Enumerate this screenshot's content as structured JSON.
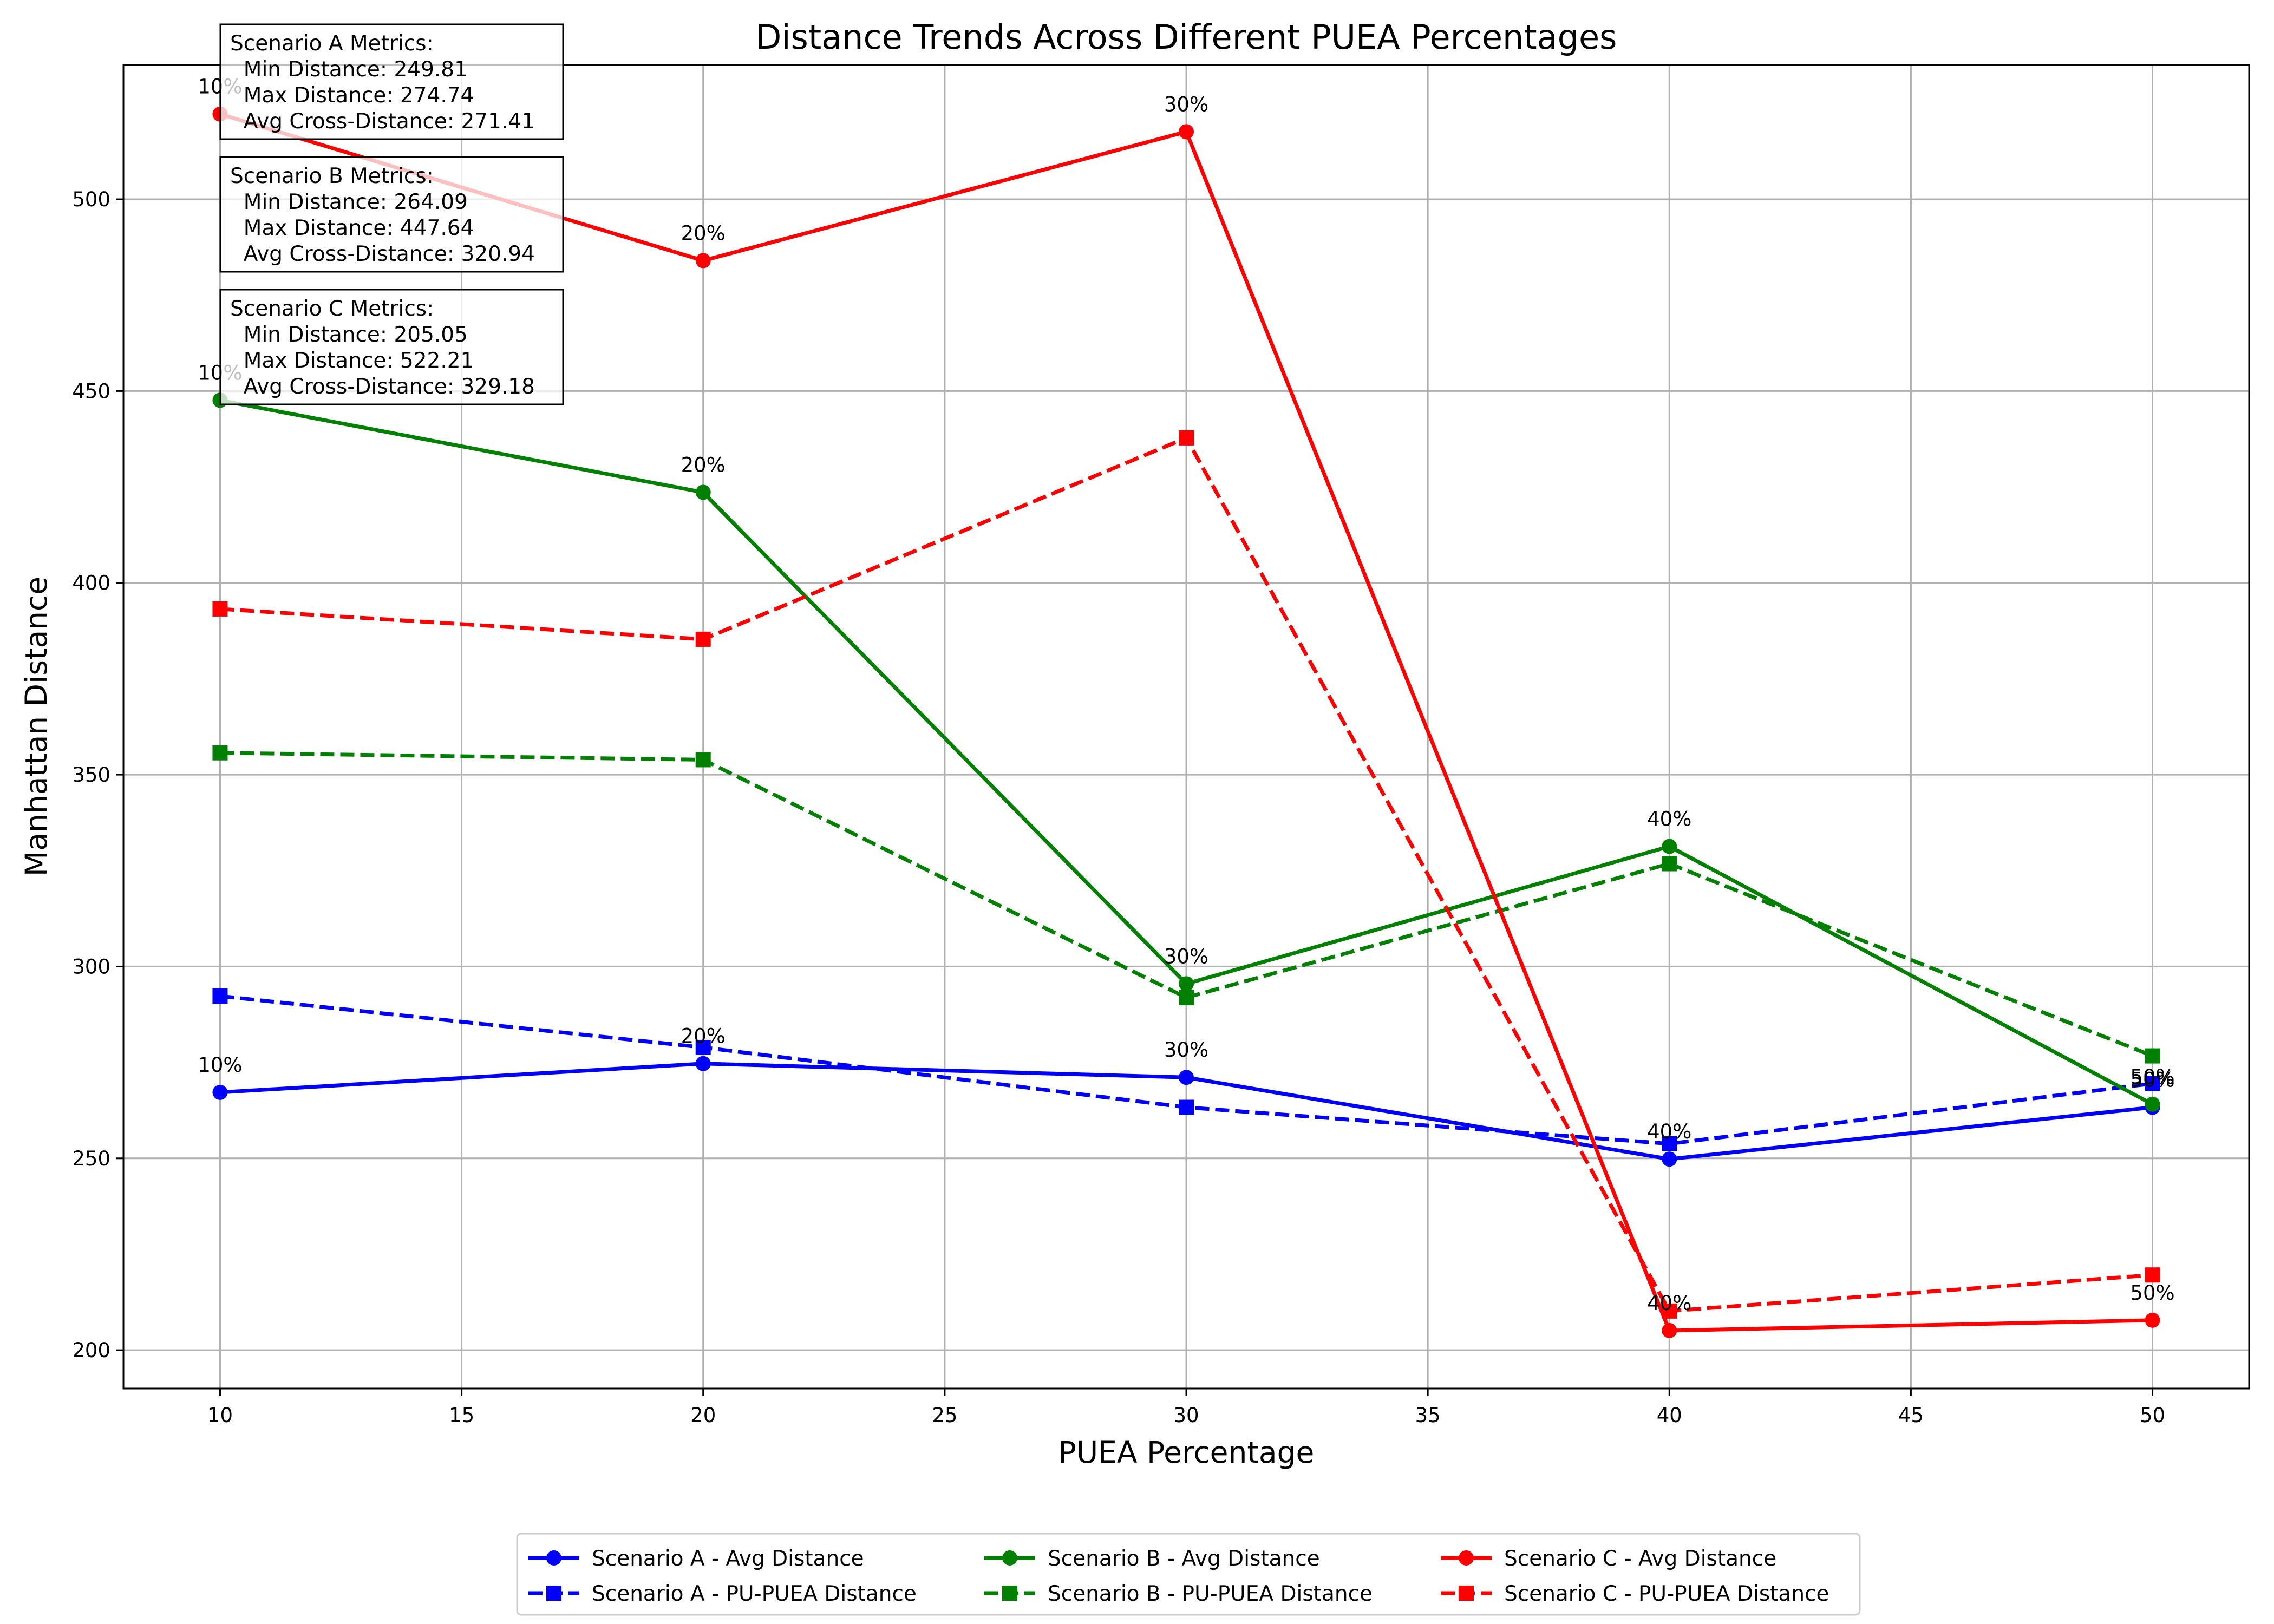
{
  "chart_data": {
    "type": "line",
    "title": "Distance Trends Across Different PUEA Percentages",
    "xlabel": "PUEA Percentage",
    "ylabel": "Manhattan Distance",
    "xlim": [
      8,
      52
    ],
    "ylim": [
      190,
      535
    ],
    "xticks": [
      10,
      15,
      20,
      25,
      30,
      35,
      40,
      45,
      50
    ],
    "yticks": [
      200,
      250,
      300,
      350,
      400,
      450,
      500
    ],
    "grid": true,
    "legend_position": "bottom-center",
    "x": [
      10,
      20,
      30,
      40,
      50
    ],
    "series": [
      {
        "name": "Scenario A - Avg Distance",
        "color": "#0000ff",
        "dashed": false,
        "marker": "circle",
        "values": [
          267.2,
          274.7,
          271.1,
          249.8,
          263.3
        ]
      },
      {
        "name": "Scenario A - PU-PUEA Distance",
        "color": "#0000ff",
        "dashed": true,
        "marker": "square",
        "values": [
          292.3,
          278.9,
          263.3,
          253.8,
          269.5
        ]
      },
      {
        "name": "Scenario B - Avg Distance",
        "color": "#008000",
        "dashed": false,
        "marker": "circle",
        "values": [
          447.6,
          423.6,
          295.5,
          331.3,
          264.1
        ]
      },
      {
        "name": "Scenario B - PU-PUEA Distance",
        "color": "#008000",
        "dashed": true,
        "marker": "square",
        "values": [
          355.7,
          353.9,
          291.9,
          326.8,
          276.7
        ]
      },
      {
        "name": "Scenario C - Avg Distance",
        "color": "#ff0000",
        "dashed": false,
        "marker": "circle",
        "values": [
          522.2,
          484.0,
          517.6,
          205.1,
          207.8
        ]
      },
      {
        "name": "Scenario C - PU-PUEA Distance",
        "color": "#ff0000",
        "dashed": true,
        "marker": "square",
        "values": [
          393.2,
          385.3,
          437.8,
          210.2,
          219.6
        ]
      }
    ],
    "annotations": [
      {
        "series": 0,
        "labels": [
          "10%",
          "20%",
          "30%",
          "40%",
          "50%"
        ]
      },
      {
        "series": 2,
        "labels": [
          "10%",
          "20%",
          "30%",
          "40%",
          "50%"
        ]
      },
      {
        "series": 4,
        "labels": [
          "10%",
          "20%",
          "30%",
          "40%",
          "50%"
        ]
      }
    ],
    "metric_boxes": [
      {
        "lines": [
          "Scenario A Metrics:",
          "  Min Distance: 249.81",
          "  Max Distance: 274.74",
          "  Avg Cross-Distance: 271.41"
        ]
      },
      {
        "lines": [
          "Scenario B Metrics:",
          "  Min Distance: 264.09",
          "  Max Distance: 447.64",
          "  Avg Cross-Distance: 320.94"
        ]
      },
      {
        "lines": [
          "Scenario C Metrics:",
          "  Min Distance: 205.05",
          "  Max Distance: 522.21",
          "  Avg Cross-Distance: 329.18"
        ]
      }
    ]
  }
}
